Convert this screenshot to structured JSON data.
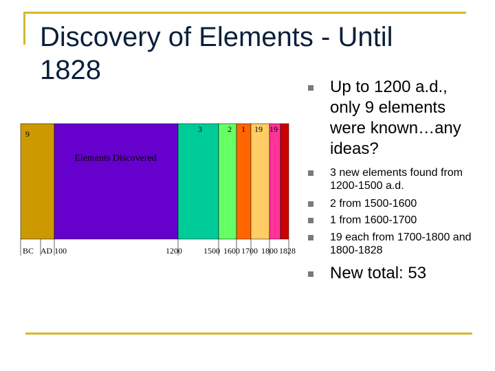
{
  "title": "Discovery of Elements - Until\n1828",
  "bullets": [
    {
      "text": "Up to 1200 a.d., only 9 elements were known…any ideas?",
      "size": "big"
    },
    {
      "text": "3 new elements found from 1200-1500 a.d.",
      "size": "small"
    },
    {
      "text": "2 from 1500-1600",
      "size": "small"
    },
    {
      "text": "1 from 1600-1700",
      "size": "small"
    },
    {
      "text": "19 each from 1700-1800 and 1800-1828",
      "size": "small"
    },
    {
      "text": "New total: 53",
      "size": "big"
    }
  ],
  "chart_data": {
    "type": "bar",
    "chart_label": "Elements Discovered",
    "x_ticks": [
      "BC",
      "AD 100",
      "1200",
      "1500",
      "1600",
      "1700",
      "1800",
      "1828"
    ],
    "segments": [
      {
        "period": "BC",
        "value": 9,
        "label": "9",
        "color": "#cc9900"
      },
      {
        "period": "AD 100-1200",
        "value": 0,
        "label": "",
        "color": "#6600cc"
      },
      {
        "period": "1200-1500",
        "value": 3,
        "label": "3",
        "color": "#00cc99"
      },
      {
        "period": "1500-1600",
        "value": 2,
        "label": "2",
        "color": "#66ff66"
      },
      {
        "period": "1600-1700",
        "value": 1,
        "label": "1",
        "color": "#ff6600"
      },
      {
        "period": "1700-1800",
        "value": 19,
        "label": "19",
        "color": "#ffcc66"
      },
      {
        "period": "1800-1828",
        "value": 19,
        "label": "19",
        "color": "#ff3399"
      },
      {
        "period": "after 1828",
        "value": null,
        "label": "",
        "color": "#cc0000"
      }
    ]
  }
}
